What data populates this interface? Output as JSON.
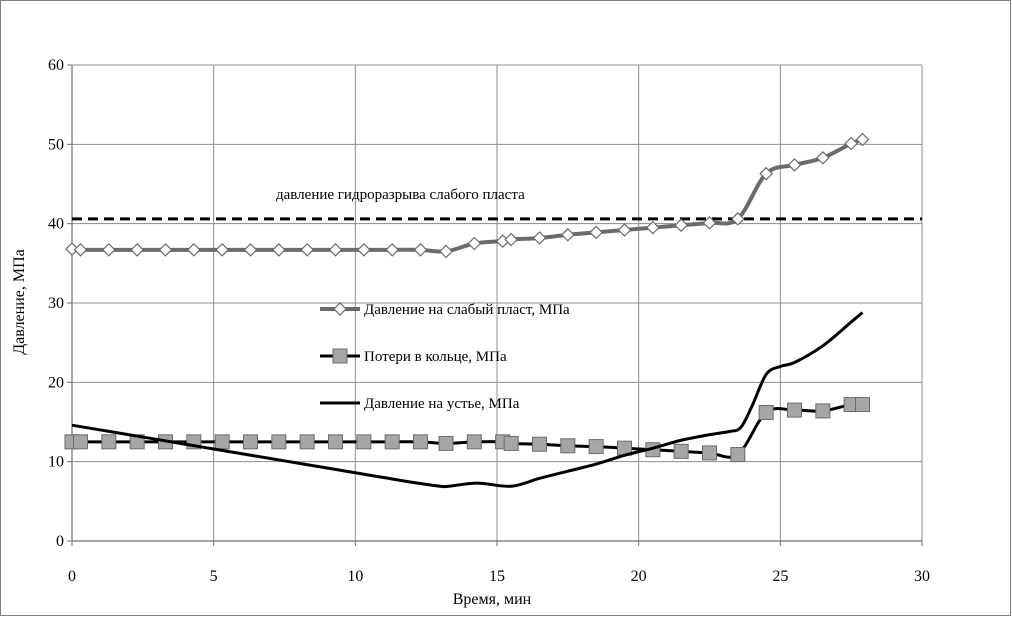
{
  "chart_data": {
    "type": "line",
    "xlabel": "Время, мин",
    "ylabel": "Давление, МПа",
    "xlim": [
      0,
      30
    ],
    "ylim": [
      0,
      60
    ],
    "x_ticks": [
      0,
      5,
      10,
      15,
      20,
      25,
      30
    ],
    "y_ticks": [
      0,
      10,
      20,
      30,
      40,
      50,
      60
    ],
    "grid": true,
    "legend_position": "center-left",
    "annotation": {
      "text": "давление гидроразрыва слабого пласта",
      "value": 40.6
    },
    "series": [
      {
        "name": "Давление на слабый пласт, МПа",
        "color": "#6b6b6b",
        "marker": "diamond",
        "x": [
          0,
          0.3,
          1.3,
          2.3,
          3.3,
          4.3,
          5.3,
          6.3,
          7.3,
          8.3,
          9.3,
          10.3,
          11.3,
          12.3,
          13.2,
          14.2,
          15.2,
          15.5,
          16.5,
          17.5,
          18.5,
          19.5,
          20.5,
          21.5,
          22.5,
          23.5,
          24.5,
          25.5,
          26.5,
          27.5,
          27.9
        ],
        "y": [
          36.8,
          36.7,
          36.7,
          36.7,
          36.7,
          36.7,
          36.7,
          36.7,
          36.7,
          36.7,
          36.7,
          36.7,
          36.7,
          36.7,
          36.5,
          37.5,
          37.8,
          38.0,
          38.2,
          38.6,
          38.9,
          39.2,
          39.5,
          39.8,
          40.1,
          40.6,
          46.3,
          47.4,
          48.3,
          50.1,
          50.6
        ]
      },
      {
        "name": "Потери в кольце, МПа",
        "color": "#000000",
        "marker": "square",
        "x": [
          0,
          0.3,
          1.3,
          2.3,
          3.3,
          4.3,
          5.3,
          6.3,
          7.3,
          8.3,
          9.3,
          10.3,
          11.3,
          12.3,
          13.2,
          14.2,
          15.2,
          15.5,
          16.5,
          17.5,
          18.5,
          19.5,
          20.5,
          21.5,
          22.5,
          23.5,
          24.5,
          25.5,
          26.5,
          27.5,
          27.9
        ],
        "y": [
          12.5,
          12.5,
          12.5,
          12.5,
          12.5,
          12.5,
          12.5,
          12.5,
          12.5,
          12.5,
          12.5,
          12.5,
          12.5,
          12.5,
          12.3,
          12.5,
          12.5,
          12.3,
          12.2,
          12.0,
          11.9,
          11.7,
          11.5,
          11.3,
          11.1,
          10.9,
          16.2,
          16.5,
          16.4,
          17.2,
          17.2
        ]
      },
      {
        "name": "Давление на устье, МПа",
        "color": "#000000",
        "marker": "none",
        "x": [
          0,
          1,
          2,
          3,
          4,
          5,
          6,
          7,
          8,
          9,
          10,
          11,
          12,
          13,
          13.3,
          14.3,
          15.5,
          16.5,
          17.5,
          18.5,
          19.5,
          20.5,
          21.5,
          22.5,
          23.2,
          23.6,
          24,
          24.5,
          25,
          25.5,
          26.5,
          27.5,
          27.9
        ],
        "y": [
          14.6,
          14.0,
          13.4,
          12.8,
          12.2,
          11.6,
          11.0,
          10.4,
          9.8,
          9.2,
          8.6,
          8.0,
          7.4,
          6.9,
          6.9,
          7.3,
          6.9,
          7.9,
          8.8,
          9.7,
          10.8,
          11.7,
          12.7,
          13.4,
          13.8,
          14.3,
          17.0,
          21.0,
          22.0,
          22.5,
          24.6,
          27.6,
          28.8
        ]
      }
    ]
  }
}
